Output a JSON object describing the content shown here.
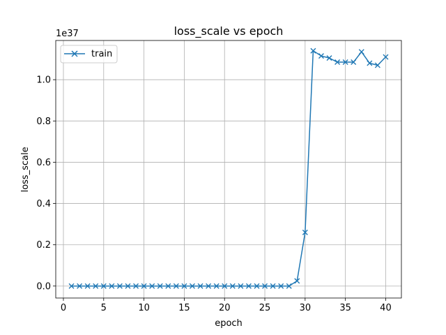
{
  "chart_data": {
    "type": "line",
    "title": "loss_scale vs epoch",
    "xlabel": "epoch",
    "ylabel": "loss_scale",
    "y_offset_label": "1e37",
    "xlim": [
      -0.95,
      41.95
    ],
    "ylim": [
      -0.058,
      1.19
    ],
    "y_unit_scale": "1e37",
    "xticks": [
      0,
      5,
      10,
      15,
      20,
      25,
      30,
      35,
      40
    ],
    "yticks": [
      0.0,
      0.2,
      0.4,
      0.6,
      0.8,
      1.0
    ],
    "ytick_labels": [
      "0.0",
      "0.2",
      "0.4",
      "0.6",
      "0.8",
      "1.0"
    ],
    "grid": true,
    "legend_position": "top-left",
    "series": [
      {
        "name": "train",
        "color": "#1f77b4",
        "marker": "x",
        "x": [
          1,
          2,
          3,
          4,
          5,
          6,
          7,
          8,
          9,
          10,
          11,
          12,
          13,
          14,
          15,
          16,
          17,
          18,
          19,
          20,
          21,
          22,
          23,
          24,
          25,
          26,
          27,
          28,
          29,
          30,
          31,
          32,
          33,
          34,
          35,
          36,
          37,
          38,
          39,
          40
        ],
        "y": [
          0,
          0,
          0,
          0,
          0,
          0,
          0,
          0,
          0,
          0,
          0,
          0,
          0,
          0,
          0,
          0,
          0,
          0,
          0,
          0,
          0,
          0,
          0,
          0,
          0,
          0,
          0,
          0,
          0.025,
          0.26,
          1.14,
          1.115,
          1.105,
          1.085,
          1.085,
          1.085,
          1.135,
          1.08,
          1.07,
          1.11
        ]
      }
    ]
  }
}
